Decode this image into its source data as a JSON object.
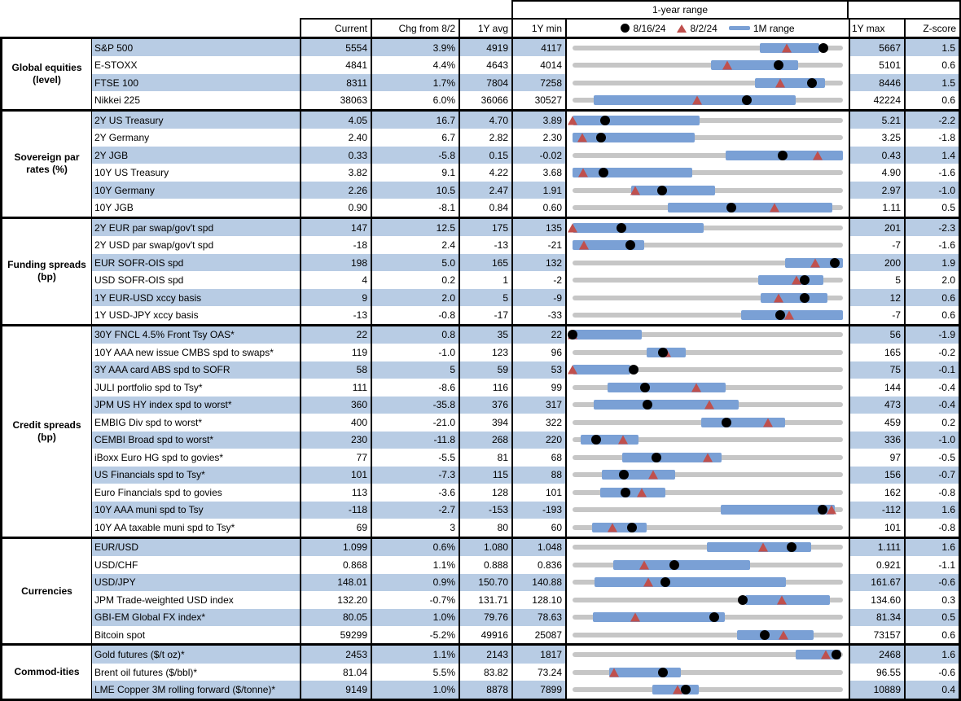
{
  "header": {
    "range_title": "1-year range",
    "columns": {
      "current": "Current",
      "chg": "Chg from 8/2",
      "avg": "1Y avg",
      "min": "1Y min",
      "max": "1Y max",
      "zscore": "Z-score"
    },
    "legend": [
      {
        "marker": "dot-icon",
        "label": "8/16/24"
      },
      {
        "marker": "triangle-icon",
        "label": "8/2/24"
      },
      {
        "marker": "bar-icon",
        "label": "1M range"
      }
    ]
  },
  "colors": {
    "stripe": "#b8cce4",
    "one_month_bar": "#7aa0d5",
    "track": "#c6c6c6",
    "dot": "#000000",
    "triangle": "#c0504d"
  },
  "chart_data": {
    "type": "table",
    "description": "Market monitor table; each row has a 1-year range bullet chart: gray track = 1Y min to 1Y max, blue bar = 1M range, black dot = 8/16/24 value, red triangle = 8/2/24 value",
    "sections": [
      {
        "label": "Global equities (level)",
        "rows": [
          {
            "label": "S&P 500",
            "current": "5554",
            "chg": "3.9%",
            "avg": "4919",
            "min": "4117",
            "max": "5667",
            "z": "1.5",
            "plot": {
              "lo": 4117,
              "hi": 5667,
              "bar": [
                5190,
                5530
              ],
              "dot": 5554,
              "tri": 5345
            }
          },
          {
            "label": "E-STOXX",
            "current": "4841",
            "chg": "4.4%",
            "avg": "4643",
            "min": "4014",
            "max": "5101",
            "z": "0.6",
            "plot": {
              "lo": 4014,
              "hi": 5101,
              "bar": [
                4572,
                4920
              ],
              "dot": 4841,
              "tri": 4637
            }
          },
          {
            "label": "FTSE 100",
            "current": "8311",
            "chg": "1.7%",
            "avg": "7804",
            "min": "7258",
            "max": "8446",
            "z": "1.5",
            "plot": {
              "lo": 7258,
              "hi": 8446,
              "bar": [
                8058,
                8366
              ],
              "dot": 8311,
              "tri": 8172
            }
          },
          {
            "label": "Nikkei 225",
            "current": "38063",
            "chg": "6.0%",
            "avg": "36066",
            "min": "30527",
            "max": "42224",
            "z": "0.6",
            "plot": {
              "lo": 30527,
              "hi": 42224,
              "bar": [
                31451,
                40177
              ],
              "dot": 38063,
              "tri": 35909
            }
          }
        ]
      },
      {
        "label": "Sovereign par rates (%)",
        "rows": [
          {
            "label": "2Y US Treasury",
            "current": "4.05",
            "chg": "16.7",
            "avg": "4.70",
            "min": "3.89",
            "max": "5.21",
            "z": "-2.2",
            "plot": {
              "lo": 3.89,
              "hi": 5.21,
              "bar": [
                3.89,
                4.51
              ],
              "dot": 4.05,
              "tri": 3.883
            }
          },
          {
            "label": "2Y Germany",
            "current": "2.40",
            "chg": "6.7",
            "avg": "2.82",
            "min": "2.30",
            "max": "3.25",
            "z": "-1.8",
            "plot": {
              "lo": 2.3,
              "hi": 3.25,
              "bar": [
                2.3,
                2.73
              ],
              "dot": 2.4,
              "tri": 2.333
            }
          },
          {
            "label": "2Y JGB",
            "current": "0.33",
            "chg": "-5.8",
            "avg": "0.15",
            "min": "-0.02",
            "max": "0.43",
            "z": "1.4",
            "plot": {
              "lo": -0.02,
              "hi": 0.43,
              "bar": [
                0.235,
                0.43
              ],
              "dot": 0.33,
              "tri": 0.388
            }
          },
          {
            "label": "10Y US Treasury",
            "current": "3.82",
            "chg": "9.1",
            "avg": "4.22",
            "min": "3.68",
            "max": "4.90",
            "z": "-1.6",
            "plot": {
              "lo": 3.68,
              "hi": 4.9,
              "bar": [
                3.68,
                4.22
              ],
              "dot": 3.82,
              "tri": 3.729
            }
          },
          {
            "label": "10Y Germany",
            "current": "2.26",
            "chg": "10.5",
            "avg": "2.47",
            "min": "1.91",
            "max": "2.97",
            "z": "-1.0",
            "plot": {
              "lo": 1.91,
              "hi": 2.97,
              "bar": [
                2.14,
                2.47
              ],
              "dot": 2.26,
              "tri": 2.155
            }
          },
          {
            "label": "10Y JGB",
            "current": "0.90",
            "chg": "-8.1",
            "avg": "0.84",
            "min": "0.60",
            "max": "1.11",
            "z": "0.5",
            "plot": {
              "lo": 0.6,
              "hi": 1.11,
              "bar": [
                0.78,
                1.09
              ],
              "dot": 0.9,
              "tri": 0.981
            }
          }
        ]
      },
      {
        "label": "Funding spreads (bp)",
        "rows": [
          {
            "label": "2Y EUR par swap/gov't spd",
            "current": "147",
            "chg": "12.5",
            "avg": "175",
            "min": "135",
            "max": "201",
            "z": "-2.3",
            "plot": {
              "lo": 135,
              "hi": 201,
              "bar": [
                135,
                167
              ],
              "dot": 147,
              "tri": 134.5
            }
          },
          {
            "label": "2Y USD par swap/gov't spd",
            "current": "-18",
            "chg": "2.4",
            "avg": "-13",
            "min": "-21",
            "max": "-7",
            "z": "-1.6",
            "plot": {
              "lo": -21,
              "hi": -7,
              "bar": [
                -21,
                -17.3
              ],
              "dot": -18,
              "tri": -20.4
            }
          },
          {
            "label": "EUR SOFR-OIS spd",
            "current": "198",
            "chg": "5.0",
            "avg": "165",
            "min": "132",
            "max": "200",
            "z": "1.9",
            "plot": {
              "lo": 132,
              "hi": 200,
              "bar": [
                185.5,
                200
              ],
              "dot": 198,
              "tri": 193
            }
          },
          {
            "label": "USD SOFR-OIS spd",
            "current": "4",
            "chg": "0.2",
            "avg": "1",
            "min": "-2",
            "max": "5",
            "z": "2.0",
            "plot": {
              "lo": -2,
              "hi": 5,
              "bar": [
                2.8,
                4.5
              ],
              "dot": 4,
              "tri": 3.8
            }
          },
          {
            "label": "1Y EUR-USD xccy basis",
            "current": "9",
            "chg": "2.0",
            "avg": "5",
            "min": "-9",
            "max": "12",
            "z": "0.6",
            "plot": {
              "lo": -9,
              "hi": 12,
              "bar": [
                5.6,
                10.8
              ],
              "dot": 9,
              "tri": 7
            }
          },
          {
            "label": "1Y USD-JPY xccy basis",
            "current": "-13",
            "chg": "-0.8",
            "avg": "-17",
            "min": "-33",
            "max": "-7",
            "z": "0.6",
            "plot": {
              "lo": -33,
              "hi": -7,
              "bar": [
                -16.8,
                -7
              ],
              "dot": -13,
              "tri": -12.2
            }
          }
        ]
      },
      {
        "label": "Credit spreads (bp)",
        "rows": [
          {
            "label": "30Y FNCL 4.5% Front Tsy OAS*",
            "current": "22",
            "chg": "0.8",
            "avg": "35",
            "min": "22",
            "max": "56",
            "z": "-1.9",
            "plot": {
              "lo": 22,
              "hi": 56,
              "bar": [
                22,
                30.7
              ],
              "dot": 22,
              "tri": 21.2
            }
          },
          {
            "label": "10Y AAA new issue CMBS spd to swaps*",
            "current": "119",
            "chg": "-1.0",
            "avg": "123",
            "min": "96",
            "max": "165",
            "z": "-0.2",
            "plot": {
              "lo": 96,
              "hi": 165,
              "bar": [
                114.9,
                124.8
              ],
              "dot": 119,
              "tri": 120
            }
          },
          {
            "label": "3Y AAA card ABS spd to SOFR",
            "current": "58",
            "chg": "5",
            "avg": "59",
            "min": "53",
            "max": "75",
            "z": "-0.1",
            "plot": {
              "lo": 53,
              "hi": 75,
              "bar": [
                53,
                57.7
              ],
              "dot": 58,
              "tri": 53
            }
          },
          {
            "label": "JULI portfolio spd to Tsy*",
            "current": "111",
            "chg": "-8.6",
            "avg": "116",
            "min": "99",
            "max": "144",
            "z": "-0.4",
            "plot": {
              "lo": 99,
              "hi": 144,
              "bar": [
                104.8,
                124.5
              ],
              "dot": 111,
              "tri": 119.6
            }
          },
          {
            "label": "JPM US HY index spd to worst*",
            "current": "360",
            "chg": "-35.8",
            "avg": "376",
            "min": "317",
            "max": "473",
            "z": "-0.4",
            "plot": {
              "lo": 317,
              "hi": 473,
              "bar": [
                329,
                412.8
              ],
              "dot": 360,
              "tri": 395.8
            }
          },
          {
            "label": "EMBIG Div spd to worst*",
            "current": "400",
            "chg": "-21.0",
            "avg": "394",
            "min": "322",
            "max": "459",
            "z": "0.2",
            "plot": {
              "lo": 322,
              "hi": 459,
              "bar": [
                387,
                429.5
              ],
              "dot": 400,
              "tri": 421
            }
          },
          {
            "label": "CEMBI Broad spd to worst*",
            "current": "230",
            "chg": "-11.8",
            "avg": "268",
            "min": "220",
            "max": "336",
            "z": "-1.0",
            "plot": {
              "lo": 220,
              "hi": 336,
              "bar": [
                223.5,
                248.2
              ],
              "dot": 230,
              "tri": 241.8
            }
          },
          {
            "label": "iBoxx Euro HG spd to govies*",
            "current": "77",
            "chg": "-5.5",
            "avg": "81",
            "min": "68",
            "max": "97",
            "z": "-0.5",
            "plot": {
              "lo": 68,
              "hi": 97,
              "bar": [
                73.3,
                84
              ],
              "dot": 77,
              "tri": 82.5
            }
          },
          {
            "label": "US Financials spd to Tsy*",
            "current": "101",
            "chg": "-7.3",
            "avg": "115",
            "min": "88",
            "max": "156",
            "z": "-0.7",
            "plot": {
              "lo": 88,
              "hi": 156,
              "bar": [
                95.4,
                113.8
              ],
              "dot": 101,
              "tri": 108.3
            }
          },
          {
            "label": "Euro Financials spd to govies",
            "current": "113",
            "chg": "-3.6",
            "avg": "128",
            "min": "101",
            "max": "162",
            "z": "-0.8",
            "plot": {
              "lo": 101,
              "hi": 162,
              "bar": [
                107.3,
                122
              ],
              "dot": 113,
              "tri": 116.6
            }
          },
          {
            "label": "10Y AAA muni spd to Tsy",
            "current": "-118",
            "chg": "-2.7",
            "avg": "-153",
            "min": "-193",
            "max": "-112",
            "z": "1.6",
            "plot": {
              "lo": -193,
              "hi": -112,
              "bar": [
                -148.5,
                -114.4
              ],
              "dot": -118,
              "tri": -115.3
            }
          },
          {
            "label": "10Y AA taxable muni spd to Tsy*",
            "current": "69",
            "chg": "3",
            "avg": "80",
            "min": "60",
            "max": "101",
            "z": "-0.8",
            "plot": {
              "lo": 60,
              "hi": 101,
              "bar": [
                63,
                71.2
              ],
              "dot": 69,
              "tri": 66
            }
          }
        ]
      },
      {
        "label": "Currencies",
        "rows": [
          {
            "label": "EUR/USD",
            "current": "1.099",
            "chg": "0.6%",
            "avg": "1.080",
            "min": "1.048",
            "max": "1.111",
            "z": "1.6",
            "plot": {
              "lo": 1.048,
              "hi": 1.111,
              "bar": [
                1.0794,
                1.1036
              ],
              "dot": 1.099,
              "tri": 1.0924
            }
          },
          {
            "label": "USD/CHF",
            "current": "0.868",
            "chg": "1.1%",
            "avg": "0.888",
            "min": "0.836",
            "max": "0.921",
            "z": "-1.1",
            "plot": {
              "lo": 0.836,
              "hi": 0.921,
              "bar": [
                0.8489,
                0.8919
              ],
              "dot": 0.868,
              "tri": 0.8586
            }
          },
          {
            "label": "USD/JPY",
            "current": "148.01",
            "chg": "0.9%",
            "avg": "150.70",
            "min": "140.88",
            "max": "161.67",
            "z": "-0.6",
            "plot": {
              "lo": 140.88,
              "hi": 161.67,
              "bar": [
                142.54,
                157.3
              ],
              "dot": 148.01,
              "tri": 146.69
            }
          },
          {
            "label": "JPM Trade-weighted USD index",
            "current": "132.20",
            "chg": "-0.7%",
            "avg": "131.71",
            "min": "128.10",
            "max": "134.60",
            "z": "0.3",
            "plot": {
              "lo": 128.1,
              "hi": 134.6,
              "bar": [
                132.26,
                134.28
              ],
              "dot": 132.2,
              "tri": 133.13
            }
          },
          {
            "label": "GBI-EM Global FX index*",
            "current": "80.05",
            "chg": "1.0%",
            "avg": "79.76",
            "min": "78.63",
            "max": "81.34",
            "z": "0.5",
            "plot": {
              "lo": 78.63,
              "hi": 81.34,
              "bar": [
                78.83,
                80.16
              ],
              "dot": 80.05,
              "tri": 79.26
            }
          },
          {
            "label": "Bitcoin spot",
            "current": "59299",
            "chg": "-5.2%",
            "avg": "49916",
            "min": "25087",
            "max": "73157",
            "z": "0.6",
            "plot": {
              "lo": 25087,
              "hi": 73157,
              "bar": [
                54266,
                67966
              ],
              "dot": 59299,
              "tri": 62552
            }
          }
        ]
      },
      {
        "label": "Commod-ities",
        "rows": [
          {
            "label": "Gold futures ($/t oz)*",
            "current": "2453",
            "chg": "1.1%",
            "avg": "2143",
            "min": "1817",
            "max": "2468",
            "z": "1.6",
            "plot": {
              "lo": 1817,
              "hi": 2468,
              "bar": [
                2355,
                2462
              ],
              "dot": 2453,
              "tri": 2426
            }
          },
          {
            "label": "Brent oil futures ($/bbl)*",
            "current": "81.04",
            "chg": "5.5%",
            "avg": "83.82",
            "min": "73.24",
            "max": "96.55",
            "z": "-0.6",
            "plot": {
              "lo": 73.24,
              "hi": 96.55,
              "bar": [
                76.4,
                82.6
              ],
              "dot": 81.04,
              "tri": 76.82
            }
          },
          {
            "label": "LME Copper 3M rolling forward ($/tonne)*",
            "current": "9149",
            "chg": "1.0%",
            "avg": "8878",
            "min": "7899",
            "max": "10889",
            "z": "0.4",
            "plot": {
              "lo": 7899,
              "hi": 10889,
              "bar": [
                8784,
                9298
              ],
              "dot": 9149,
              "tri": 9058
            }
          }
        ]
      }
    ]
  }
}
